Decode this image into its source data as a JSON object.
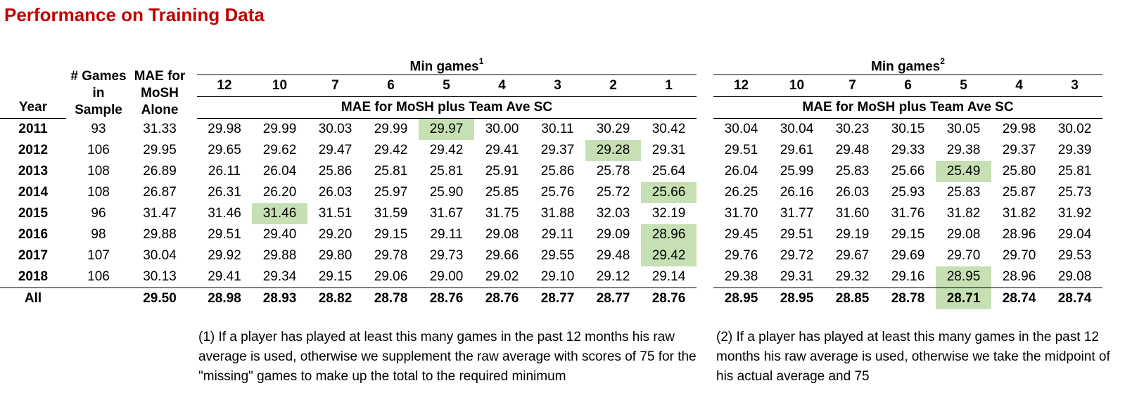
{
  "title": "Performance on Training Data",
  "headers": {
    "year": "Year",
    "games_l1": "# Games",
    "games_l2": "in",
    "games_l3": "Sample",
    "mae_l1": "MAE for",
    "mae_l2": "MoSH",
    "mae_l3": "Alone",
    "min_games": "Min games",
    "sup1": "1",
    "sup2": "2",
    "plus_team": "MAE for MoSH plus Team Ave SC"
  },
  "colors": {
    "title": "#c00000",
    "highlight": "#c6e0b4"
  },
  "chart_data": [
    {
      "type": "table",
      "title": "Performance on Training Data",
      "columns": [
        "12",
        "10",
        "7",
        "6",
        "5",
        "4",
        "3",
        "2",
        "1"
      ],
      "rows": [
        {
          "year": "2011",
          "games": "93",
          "mae": "31.33",
          "values": [
            "29.98",
            "29.99",
            "30.03",
            "29.99",
            "29.97",
            "30.00",
            "30.11",
            "30.29",
            "30.42"
          ],
          "highlight": 4
        },
        {
          "year": "2012",
          "games": "106",
          "mae": "29.95",
          "values": [
            "29.65",
            "29.62",
            "29.47",
            "29.42",
            "29.42",
            "29.41",
            "29.37",
            "29.28",
            "29.31"
          ],
          "highlight": 7
        },
        {
          "year": "2013",
          "games": "108",
          "mae": "26.89",
          "values": [
            "26.11",
            "26.04",
            "25.86",
            "25.81",
            "25.81",
            "25.91",
            "25.86",
            "25.78",
            "25.64"
          ],
          "highlight": -1
        },
        {
          "year": "2014",
          "games": "108",
          "mae": "26.87",
          "values": [
            "26.31",
            "26.20",
            "26.03",
            "25.97",
            "25.90",
            "25.85",
            "25.76",
            "25.72",
            "25.66"
          ],
          "highlight": 8
        },
        {
          "year": "2015",
          "games": "96",
          "mae": "31.47",
          "values": [
            "31.46",
            "31.46",
            "31.51",
            "31.59",
            "31.67",
            "31.75",
            "31.88",
            "32.03",
            "32.19"
          ],
          "highlight": 1
        },
        {
          "year": "2016",
          "games": "98",
          "mae": "29.88",
          "values": [
            "29.51",
            "29.40",
            "29.20",
            "29.15",
            "29.11",
            "29.08",
            "29.11",
            "29.09",
            "28.96"
          ],
          "highlight": 8
        },
        {
          "year": "2017",
          "games": "107",
          "mae": "30.04",
          "values": [
            "29.92",
            "29.88",
            "29.80",
            "29.78",
            "29.73",
            "29.66",
            "29.55",
            "29.48",
            "29.42"
          ],
          "highlight": 8
        },
        {
          "year": "2018",
          "games": "106",
          "mae": "30.13",
          "values": [
            "29.41",
            "29.34",
            "29.15",
            "29.06",
            "29.00",
            "29.02",
            "29.10",
            "29.12",
            "29.14"
          ],
          "highlight": -1
        }
      ],
      "total": {
        "year": "All",
        "games": "",
        "mae": "29.50",
        "values": [
          "28.98",
          "28.93",
          "28.82",
          "28.78",
          "28.76",
          "28.76",
          "28.77",
          "28.77",
          "28.76"
        ],
        "highlight": -1
      }
    },
    {
      "type": "table",
      "columns": [
        "12",
        "10",
        "7",
        "6",
        "5",
        "4",
        "3"
      ],
      "rows": [
        {
          "values": [
            "30.04",
            "30.04",
            "30.23",
            "30.15",
            "30.05",
            "29.98",
            "30.02"
          ],
          "highlight": -1
        },
        {
          "values": [
            "29.51",
            "29.61",
            "29.48",
            "29.33",
            "29.38",
            "29.37",
            "29.39"
          ],
          "highlight": -1
        },
        {
          "values": [
            "26.04",
            "25.99",
            "25.83",
            "25.66",
            "25.49",
            "25.80",
            "25.81"
          ],
          "highlight": 4
        },
        {
          "values": [
            "26.25",
            "26.16",
            "26.03",
            "25.93",
            "25.83",
            "25.87",
            "25.73"
          ],
          "highlight": -1
        },
        {
          "values": [
            "31.70",
            "31.77",
            "31.60",
            "31.76",
            "31.82",
            "31.82",
            "31.92"
          ],
          "highlight": -1
        },
        {
          "values": [
            "29.45",
            "29.51",
            "29.19",
            "29.15",
            "29.08",
            "28.96",
            "29.04"
          ],
          "highlight": -1
        },
        {
          "values": [
            "29.76",
            "29.72",
            "29.67",
            "29.69",
            "29.70",
            "29.70",
            "29.53"
          ],
          "highlight": -1
        },
        {
          "values": [
            "29.38",
            "29.31",
            "29.32",
            "29.16",
            "28.95",
            "28.96",
            "29.08"
          ],
          "highlight": 4
        }
      ],
      "total": {
        "values": [
          "28.95",
          "28.95",
          "28.85",
          "28.78",
          "28.71",
          "28.74",
          "28.74"
        ],
        "highlight": 4
      }
    }
  ],
  "notes": {
    "note1": "(1) If a player has played at least this many games in the past 12 months his raw average is used, otherwise we supplement the raw average with scores of 75 for the \"missing\" games to make up the total to the required minimum",
    "note2": "(2) If a player has played at least this many games in the past 12 months his raw average is used, otherwise we take the midpoint of his actual average and 75"
  }
}
